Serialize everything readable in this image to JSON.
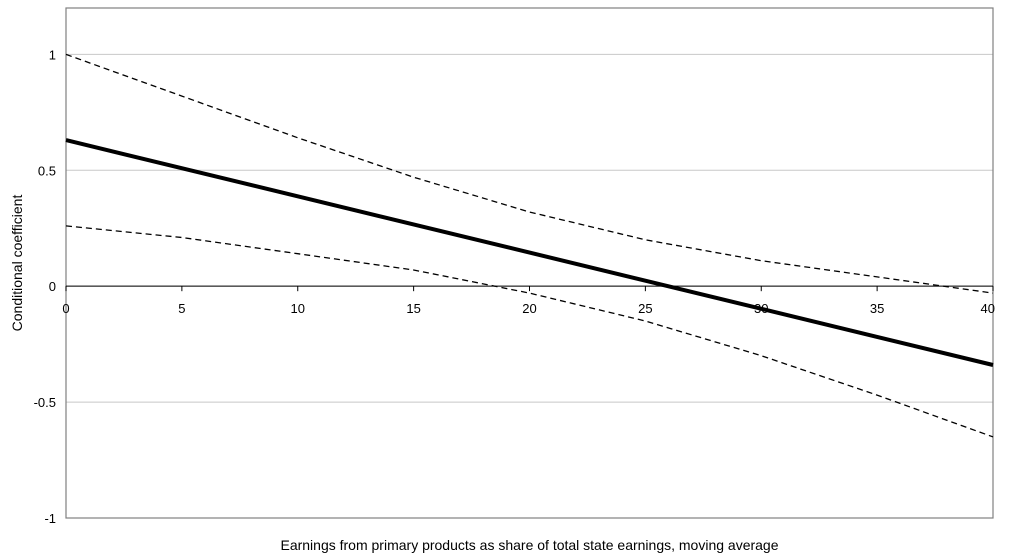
{
  "chart_data": {
    "type": "line",
    "title": "",
    "xlabel": "Earnings from primary products as share of total state earnings, moving average",
    "ylabel": "Conditional coefficient",
    "xlim": [
      0,
      40
    ],
    "ylim": [
      -1,
      1.2
    ],
    "x_ticks": [
      0,
      5,
      10,
      15,
      20,
      25,
      30,
      35,
      40
    ],
    "x_tick_labels": [
      "0",
      "5",
      "10",
      "15",
      "20",
      "25",
      "30",
      "35",
      "40"
    ],
    "y_ticks": [
      -1,
      -0.5,
      0,
      0.5,
      1
    ],
    "y_tick_labels": [
      "-1",
      "-0.5",
      "0",
      "0.5",
      "1"
    ],
    "grid": "horizontal",
    "legend": "none",
    "colors": {
      "line": "#000000",
      "grid": "#c8c8c8",
      "frame": "#808080"
    },
    "series": [
      {
        "style": "solid-thick",
        "x": [
          0,
          40
        ],
        "y": [
          0.63,
          -0.34
        ]
      },
      {
        "style": "dashed",
        "x": [
          0,
          5,
          10,
          15,
          20,
          25,
          30,
          35,
          40
        ],
        "y": [
          1.0,
          0.82,
          0.64,
          0.47,
          0.32,
          0.2,
          0.11,
          0.04,
          -0.03
        ]
      },
      {
        "style": "dashed",
        "x": [
          0,
          5,
          10,
          15,
          20,
          25,
          30,
          35,
          40
        ],
        "y": [
          0.26,
          0.21,
          0.14,
          0.07,
          -0.03,
          -0.15,
          -0.3,
          -0.47,
          -0.65
        ]
      }
    ]
  }
}
